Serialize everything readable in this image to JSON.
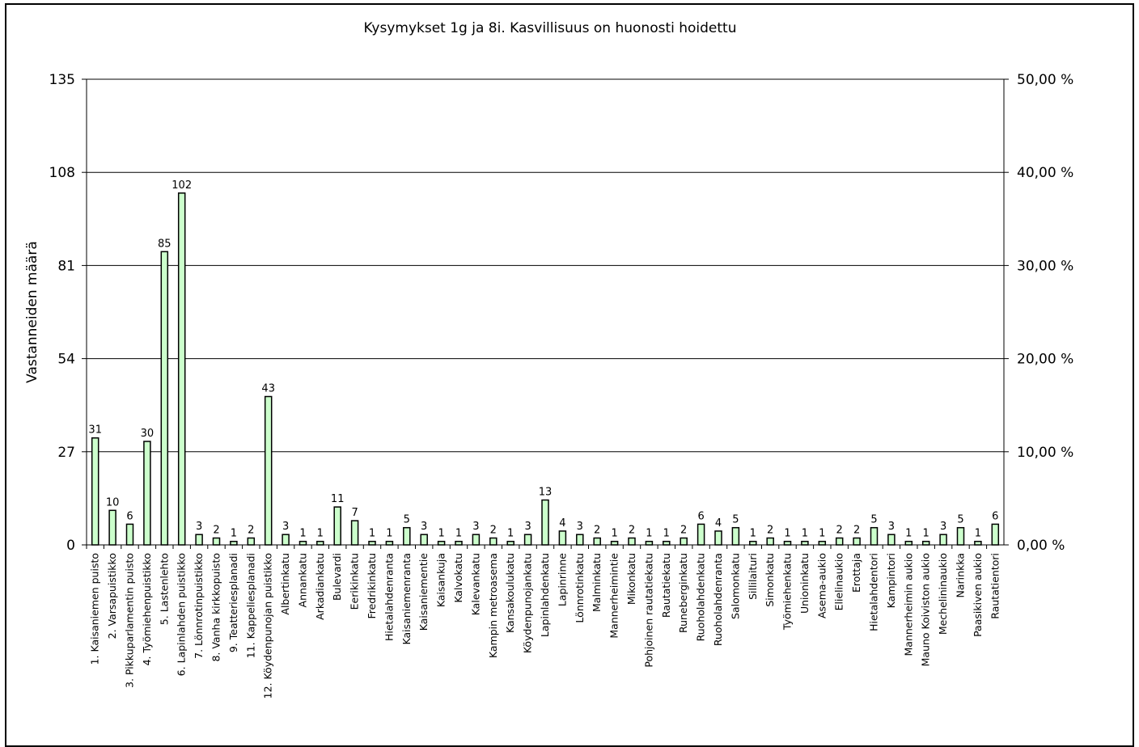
{
  "chart_data": {
    "type": "bar",
    "title": "Kysymykset 1g ja 8i.  Kasvillisuus on huonosti hoidettu",
    "ylabel": "Vastanneiden määrä",
    "ylim": [
      0,
      135
    ],
    "yticks": [
      "0",
      "27",
      "54",
      "81",
      "108",
      "135"
    ],
    "y2lim": [
      0,
      50
    ],
    "y2ticks": [
      "0,00 %",
      "10,00 %",
      "20,00 %",
      "30,00 %",
      "40,00 %",
      "50,00 %"
    ],
    "grid": true,
    "bar_color": "#ccffcc",
    "categories": [
      "1. Kaisaniemen puisto",
      "2. Varsapuistikko",
      "3. Pikkuparlamentin puisto",
      "4. Työmiehenpuistikko",
      "5. Lastenlehto",
      "6. Lapinlahden puistikko",
      "7. Lönnrotinpuistikko",
      "8. Vanha kirkkopuisto",
      "9. Teatteriesplanadi",
      "11. Kappeliesplanadi",
      "12. Köydenpunojan puistikko",
      "Albertinkatu",
      "Annankatu",
      "Arkadiankatu",
      "Bulevardi",
      "Eerikinkatu",
      "Fredrikinkatu",
      "Hietalahdenranta",
      "Kaisaniemenranta",
      "Kaisaniementie",
      "Kaisankuja",
      "Kalvokatu",
      "Kalevankatu",
      "Kampin metroasema",
      "Kansakoulukatu",
      "Köydenpunojankatu",
      "Lapinlahdenkatu",
      "Lapinrinne",
      "Lönnrotinkatu",
      "Malminkatu",
      "Mannerheimintie",
      "Mikonkatu",
      "Pohjoinen rautatiekatu",
      "Rautatiekatu",
      "Runeberginkatu",
      "Ruoholahdenkatu",
      "Ruoholahdenranta",
      "Salomonkatu",
      "Sillilaituri",
      "Simonkatu",
      "Työmiehenkatu",
      "Unioninkatu",
      "Asema-aukio",
      "Elielinaukio",
      "Erottaja",
      "Hietalahdentori",
      "Kampintori",
      "Mannerheimin aukio",
      "Mauno Koiviston aukio",
      "Mechelininaukio",
      "Narinkka",
      "Paasikiven aukio",
      "Rautatientori"
    ],
    "values": [
      31,
      10,
      6,
      30,
      85,
      102,
      3,
      2,
      1,
      2,
      43,
      3,
      1,
      1,
      11,
      7,
      1,
      1,
      5,
      3,
      1,
      1,
      3,
      2,
      1,
      3,
      13,
      4,
      3,
      2,
      1,
      2,
      1,
      1,
      2,
      6,
      4,
      5,
      1,
      2,
      1,
      1,
      1,
      2,
      2,
      5,
      3,
      1,
      1,
      3,
      5,
      1,
      6
    ]
  }
}
